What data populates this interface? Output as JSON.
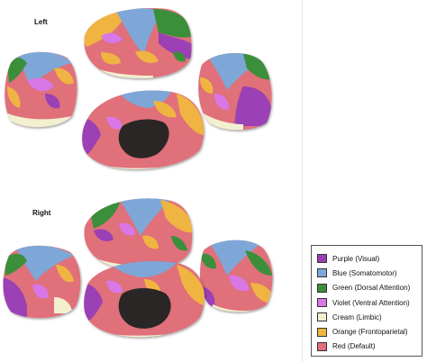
{
  "labels": {
    "left": "Left",
    "right": "Right"
  },
  "networks": [
    {
      "label": "Purple  (Visual)",
      "color": "#9b3fb5"
    },
    {
      "label": "Blue    (Somatomotor)",
      "color": "#7ea7d8"
    },
    {
      "label": "Green   (Dorsal Attention)",
      "color": "#3b8f3a"
    },
    {
      "label": "Violet  (Ventral Attention)",
      "color": "#d977e6"
    },
    {
      "label": "Cream  (Limbic)",
      "color": "#f3f0cf"
    },
    {
      "label": "Orange (Frontoparietal)",
      "color": "#f0b443"
    },
    {
      "label": "Red      (Default)",
      "color": "#e0707a"
    }
  ],
  "colors": {
    "visual": "#9b3fb5",
    "somatomotor": "#7ea7d8",
    "dorsal": "#3b8f3a",
    "ventral": "#d977e6",
    "limbic": "#f3f0cf",
    "frontoparietal": "#f0b443",
    "default": "#e0707a",
    "medial_wall": "#2a2626"
  }
}
